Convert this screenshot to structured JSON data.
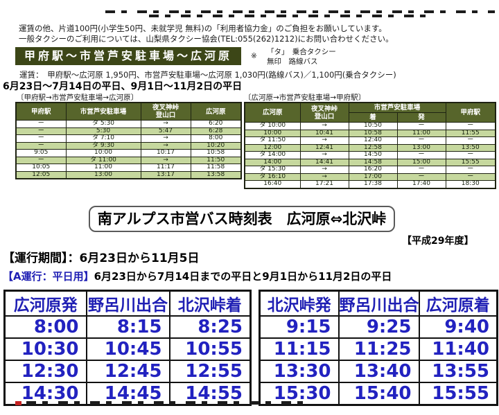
{
  "colors": {
    "olive_dark": "#3c4617",
    "olive_header": "#57652b",
    "row_green": "#c6d89e",
    "time_blue": "#2222c0"
  },
  "notes": {
    "line1": "運賃の他、片道100円(小学生50円、未就学児 無料)の「利用者協力金」のご負担をお願いしています。",
    "line2": "一般タクシーのご利用については、山梨県タクシー協会(TEL:055(262)1212)にお問い合わせください。"
  },
  "kofu_section": {
    "title": "甲府駅～市営芦安駐車場～広河原",
    "legend": {
      "mark": "※",
      "line1": "「タ」　乗合タクシー",
      "line2": "無印　路線バス"
    },
    "fare": "運賃：　甲府駅～広河原 1,950円、市営芦安駐車場～広河原 1,030円(路線バス)／1,100円(乗合タクシー)",
    "period": "6月23日～7月14日の平日、9月1日～11月2日の平日",
    "outbound": {
      "caption": "〔甲府駅→市営芦安駐車場→広河原〕",
      "headers": {
        "kofu": "甲府駅",
        "parking": "市営芦安駐車場",
        "yasha1": "夜叉神峠",
        "yasha2": "登山口",
        "hirogawara": "広河原"
      },
      "rows": [
        [
          "ー",
          "タ 5:30",
          "→",
          "6:20"
        ],
        [
          "ー",
          "5:30",
          "5:47",
          "6:28"
        ],
        [
          "ー",
          "タ 7:10",
          "→",
          "8:00"
        ],
        [
          "ー",
          "タ 9:30",
          "→",
          "10:20"
        ],
        [
          "9:05",
          "10:00",
          "10:17",
          "10:58"
        ],
        [
          "ー",
          "タ 11:00",
          "→",
          "11:50"
        ],
        [
          "10:05",
          "11:00",
          "11:17",
          "11:58"
        ],
        [
          "12:05",
          "13:00",
          "13:17",
          "13:58"
        ]
      ]
    },
    "inbound": {
      "caption": "〔広河原→市営芦安駐車場→甲府駅〕",
      "headers": {
        "hirogawara": "広河原",
        "yasha1": "夜叉神峠",
        "yasha2": "登山口",
        "parking": "市営芦安駐車場",
        "arrive": "着",
        "depart": "発",
        "kofu": "甲府駅"
      },
      "rows": [
        [
          "タ 10:00",
          "→",
          "10:50",
          "ー",
          "ー"
        ],
        [
          "10:00",
          "10:41",
          "10:58",
          "11:00",
          "11:55"
        ],
        [
          "タ 11:50",
          "→",
          "12:40",
          "ー",
          "ー"
        ],
        [
          "12:00",
          "12:41",
          "12:58",
          "13:00",
          "13:50"
        ],
        [
          "タ 14:00",
          "→",
          "14:50",
          "ー",
          "ー"
        ],
        [
          "14:00",
          "14:41",
          "14:58",
          "15:00",
          "15:55"
        ],
        [
          "タ 15:30",
          "→",
          "16:20",
          "ー",
          "ー"
        ],
        [
          "タ 16:10",
          "→",
          "17:00",
          "ー",
          "ー"
        ],
        [
          "16:40",
          "17:21",
          "17:38",
          "17:40",
          "18:30"
        ]
      ]
    }
  },
  "city_bus_section": {
    "title": "南アルプス市営バス時刻表　広河原⇔北沢峠",
    "fiscal_year": "【平成29年度】",
    "operation_period": "【運行期間】：6月23日から11月5日",
    "schedule_a_label": "【A運行：平日用】",
    "schedule_a_text": "6月23日から7月14日までの平日と9月1日から11月2日の平日",
    "to_kitazawa": {
      "headers": {
        "col1": "広河原発",
        "col2": "野呂川出合",
        "col3": "北沢峠着"
      },
      "rows": [
        [
          "8:00",
          "8:15",
          "8:25"
        ],
        [
          "10:30",
          "10:45",
          "10:55"
        ],
        [
          "12:30",
          "12:45",
          "12:55"
        ],
        [
          "14:30",
          "14:45",
          "14:55"
        ]
      ]
    },
    "to_hirogawara": {
      "headers": {
        "col1": "北沢峠発",
        "col2": "野呂川出合",
        "col3": "広河原着"
      },
      "rows": [
        [
          "9:15",
          "9:25",
          "9:40"
        ],
        [
          "11:15",
          "11:25",
          "11:40"
        ],
        [
          "13:30",
          "13:40",
          "13:55"
        ],
        [
          "15:30",
          "15:40",
          "15:55"
        ]
      ]
    }
  }
}
